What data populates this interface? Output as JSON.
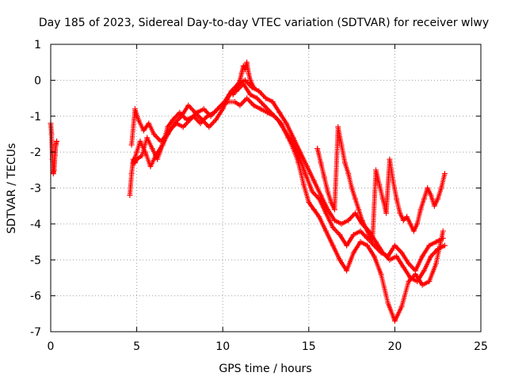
{
  "chart_data": {
    "type": "scatter",
    "title": "Day 185 of 2023, Sidereal Day-to-day VTEC variation (SDTVAR) for receiver wlwy",
    "xlabel": "GPS time / hours",
    "ylabel": "SDTVAR / TECUs",
    "xlim": [
      0,
      25
    ],
    "ylim": [
      -7,
      1
    ],
    "xticks": [
      0,
      5,
      10,
      15,
      20,
      25
    ],
    "yticks": [
      1,
      0,
      -1,
      -2,
      -3,
      -4,
      -5,
      -6,
      -7
    ],
    "grid": true,
    "marker": "plus",
    "color": "#ff0000",
    "series": [
      {
        "x": [
          0.0,
          0.05,
          0.1,
          0.15,
          0.2,
          0.25,
          0.3,
          0.35
        ],
        "y": [
          -1.2,
          -1.5,
          -2.2,
          -2.6,
          -2.5,
          -2.1,
          -1.8,
          -1.7
        ]
      },
      {
        "x": [
          4.6,
          4.7,
          4.8,
          4.9,
          5.0,
          5.3,
          5.6,
          5.9,
          6.2,
          6.5,
          6.8,
          7.1,
          7.5,
          7.9,
          8.3,
          8.7,
          9.1,
          9.5,
          9.9,
          10.3,
          10.7,
          11.0,
          11.4,
          11.8,
          12.2,
          12.6,
          13.0,
          13.4,
          13.8,
          14.1,
          14.4,
          14.7,
          15.0,
          15.3,
          15.6,
          16.0,
          16.4,
          16.8,
          17.2,
          17.6,
          18.0,
          18.4,
          18.8,
          19.2,
          19.6,
          20.0,
          20.4,
          20.8,
          21.2,
          21.6,
          22.0,
          22.4,
          22.8
        ],
        "y": [
          -3.2,
          -2.6,
          -2.2,
          -2.3,
          -2.2,
          -2.1,
          -1.6,
          -1.9,
          -2.2,
          -1.8,
          -1.3,
          -1.1,
          -0.9,
          -1.1,
          -1.0,
          -1.2,
          -1.0,
          -0.9,
          -0.7,
          -0.6,
          -0.6,
          -0.7,
          -0.5,
          -0.7,
          -0.8,
          -0.9,
          -1.0,
          -1.2,
          -1.6,
          -1.9,
          -2.3,
          -2.9,
          -3.4,
          -3.6,
          -3.8,
          -4.2,
          -4.6,
          -5.0,
          -5.3,
          -4.8,
          -4.5,
          -4.6,
          -4.9,
          -5.4,
          -6.2,
          -6.7,
          -6.3,
          -5.6,
          -5.4,
          -5.7,
          -5.6,
          -5.1,
          -4.2
        ]
      },
      {
        "x": [
          4.7,
          4.9,
          5.1,
          5.4,
          5.7,
          6.0,
          6.4,
          6.8,
          7.2,
          7.6,
          8.0,
          8.4,
          8.8,
          9.2,
          9.6,
          10.0,
          10.4,
          10.8,
          11.2,
          11.6,
          12.0,
          12.4,
          12.8,
          13.2,
          13.6,
          14.0,
          14.4,
          14.8,
          15.2,
          15.6,
          16.0,
          16.4,
          16.8,
          17.2,
          17.6,
          18.0,
          18.4,
          18.8,
          19.2,
          19.6,
          20.0,
          20.4,
          20.8,
          21.2,
          21.6,
          22.0,
          22.4,
          22.8
        ],
        "y": [
          -1.8,
          -0.8,
          -1.1,
          -1.4,
          -1.2,
          -1.5,
          -1.7,
          -1.5,
          -1.2,
          -1.0,
          -0.7,
          -0.9,
          -1.1,
          -1.3,
          -1.1,
          -0.8,
          -0.4,
          -0.3,
          -0.1,
          -0.4,
          -0.5,
          -0.7,
          -0.9,
          -1.1,
          -1.4,
          -1.7,
          -2.1,
          -2.6,
          -3.1,
          -3.3,
          -3.7,
          -4.1,
          -4.3,
          -4.6,
          -4.3,
          -4.2,
          -4.4,
          -4.6,
          -4.8,
          -4.9,
          -4.6,
          -4.8,
          -5.1,
          -5.3,
          -4.9,
          -4.6,
          -4.5,
          -4.4
        ]
      },
      {
        "x": [
          4.8,
          5.0,
          5.2,
          5.5,
          5.8,
          6.1,
          6.5,
          6.9,
          7.3,
          7.7,
          8.1,
          8.5,
          8.9,
          9.3,
          9.7,
          10.1,
          10.5,
          10.9,
          11.3,
          11.7,
          12.1,
          12.5,
          12.9,
          13.3,
          13.7,
          14.1,
          14.5,
          14.9,
          15.3,
          15.7,
          16.1,
          16.5,
          16.9,
          17.3,
          17.7,
          18.1,
          18.5,
          18.9,
          19.3,
          19.7,
          20.1,
          20.5,
          20.9,
          21.3,
          21.7,
          22.1,
          22.5,
          22.9
        ],
        "y": [
          -2.3,
          -2.0,
          -1.7,
          -2.0,
          -2.4,
          -2.1,
          -1.8,
          -1.4,
          -1.2,
          -1.3,
          -1.1,
          -0.9,
          -0.8,
          -1.0,
          -0.8,
          -0.6,
          -0.3,
          -0.1,
          0.0,
          -0.2,
          -0.3,
          -0.5,
          -0.6,
          -0.9,
          -1.2,
          -1.6,
          -2.0,
          -2.4,
          -2.8,
          -3.2,
          -3.6,
          -3.9,
          -4.0,
          -3.9,
          -3.7,
          -4.0,
          -4.2,
          -4.5,
          -4.8,
          -5.0,
          -4.9,
          -5.2,
          -5.5,
          -5.6,
          -5.3,
          -4.9,
          -4.7,
          -4.6
        ]
      },
      {
        "x": [
          15.5,
          15.7,
          15.9,
          16.1,
          16.3,
          16.5,
          16.7,
          16.9,
          17.1,
          17.3,
          17.5,
          17.7,
          17.9,
          18.1,
          18.3,
          18.5,
          18.7,
          18.9,
          19.1,
          19.3,
          19.5,
          19.7,
          19.9,
          20.1,
          20.3,
          20.5,
          20.7,
          20.9,
          21.1,
          21.3,
          21.5,
          21.7,
          21.9,
          22.1,
          22.3,
          22.5,
          22.7,
          22.9
        ],
        "y": [
          -1.9,
          -2.3,
          -2.7,
          -3.1,
          -3.4,
          -3.6,
          -1.3,
          -1.8,
          -2.3,
          -2.6,
          -3.0,
          -3.3,
          -3.6,
          -3.9,
          -4.1,
          -4.3,
          -4.5,
          -2.5,
          -2.9,
          -3.3,
          -3.7,
          -2.2,
          -2.8,
          -3.3,
          -3.7,
          -3.9,
          -3.8,
          -4.0,
          -4.2,
          -4.0,
          -3.6,
          -3.3,
          -3.0,
          -3.2,
          -3.5,
          -3.3,
          -3.0,
          -2.6
        ]
      },
      {
        "x": [
          10.6,
          10.8,
          11.0,
          11.1,
          11.2,
          11.3,
          11.4,
          11.5,
          11.6,
          11.8
        ],
        "y": [
          -0.4,
          -0.2,
          0.0,
          0.2,
          0.4,
          0.3,
          0.5,
          0.2,
          0.0,
          -0.2
        ]
      }
    ]
  }
}
